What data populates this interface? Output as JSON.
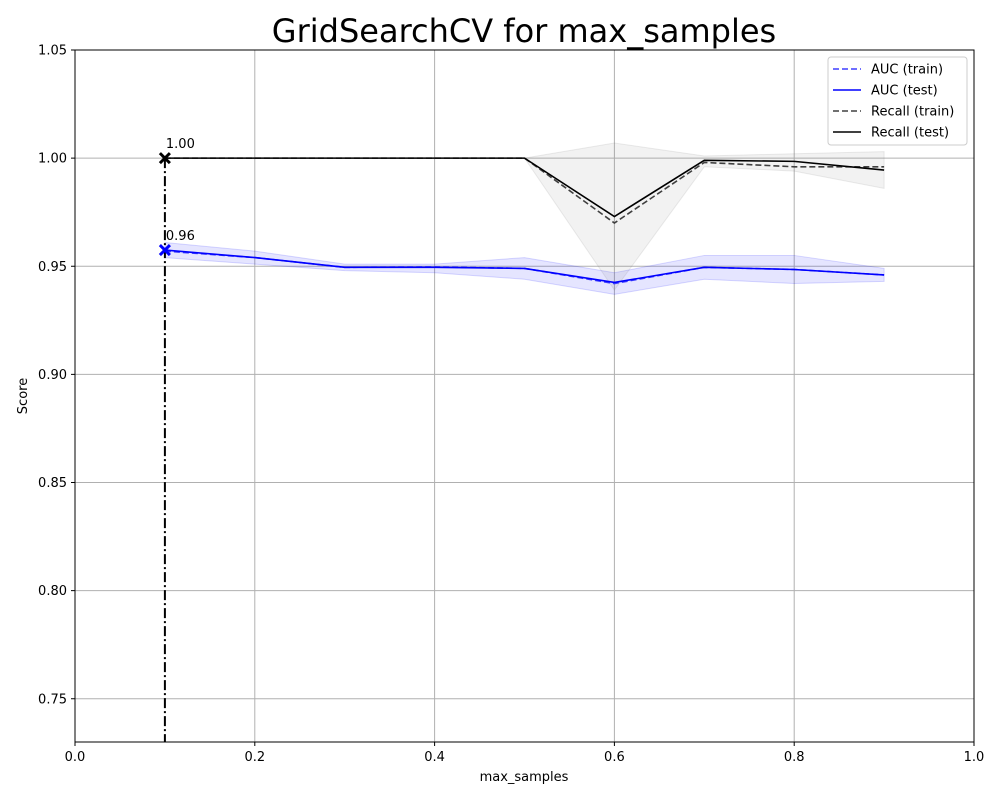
{
  "chart_data": {
    "type": "line",
    "title": "GridSearchCV for max_samples",
    "xlabel": "max_samples",
    "ylabel": "Score",
    "xlim": [
      0.0,
      1.0
    ],
    "ylim": [
      0.73,
      1.05
    ],
    "xticks": [
      0.0,
      0.2,
      0.4,
      0.6,
      0.8,
      1.0
    ],
    "xtick_labels": [
      "0.0",
      "0.2",
      "0.4",
      "0.6",
      "0.8",
      "1.0"
    ],
    "yticks": [
      0.75,
      0.8,
      0.85,
      0.9,
      0.95,
      1.0,
      1.05
    ],
    "ytick_labels": [
      "0.75",
      "0.80",
      "0.85",
      "0.90",
      "0.95",
      "1.00",
      "1.05"
    ],
    "grid": true,
    "legend_position": "top-right",
    "x": [
      0.1,
      0.2,
      0.3,
      0.4,
      0.5,
      0.6,
      0.7,
      0.8,
      0.9
    ],
    "series": [
      {
        "name": "AUC (train)",
        "color": "#3f3fff",
        "linestyle": "dashed",
        "values": [
          0.957,
          0.954,
          0.9495,
          0.9497,
          0.949,
          0.942,
          0.9495,
          0.9485,
          0.946
        ]
      },
      {
        "name": "AUC (test)",
        "color": "#0000ff",
        "linestyle": "solid",
        "values": [
          0.9575,
          0.954,
          0.9495,
          0.9495,
          0.949,
          0.9425,
          0.9495,
          0.9485,
          0.946
        ],
        "band_lower": [
          0.954,
          0.951,
          0.948,
          0.947,
          0.944,
          0.937,
          0.944,
          0.942,
          0.943
        ],
        "band_upper": [
          0.961,
          0.957,
          0.951,
          0.951,
          0.954,
          0.947,
          0.955,
          0.955,
          0.949
        ],
        "band_color": "#0000ff"
      },
      {
        "name": "Recall (train)",
        "color": "#404040",
        "linestyle": "dashed",
        "values": [
          1.0,
          1.0,
          1.0,
          1.0,
          1.0,
          0.97,
          0.998,
          0.996,
          0.996
        ]
      },
      {
        "name": "Recall (test)",
        "color": "#000000",
        "linestyle": "solid",
        "values": [
          1.0,
          1.0,
          1.0,
          1.0,
          1.0,
          0.973,
          0.999,
          0.9985,
          0.9945
        ],
        "band_lower": [
          1.0,
          1.0,
          1.0,
          1.0,
          1.0,
          0.939,
          0.996,
          0.994,
          0.986
        ],
        "band_upper": [
          1.0,
          1.0,
          1.0,
          1.0,
          1.0,
          1.007,
          1.001,
          1.002,
          1.003
        ],
        "band_color": "#808080"
      }
    ],
    "best_markers": [
      {
        "series": "AUC (test)",
        "x": 0.1,
        "y": 0.9575,
        "label": "0.96",
        "color": "#0000ff"
      },
      {
        "series": "Recall (test)",
        "x": 0.1,
        "y": 1.0,
        "label": "1.00",
        "color": "#000000"
      }
    ],
    "best_vline_x": 0.1
  }
}
